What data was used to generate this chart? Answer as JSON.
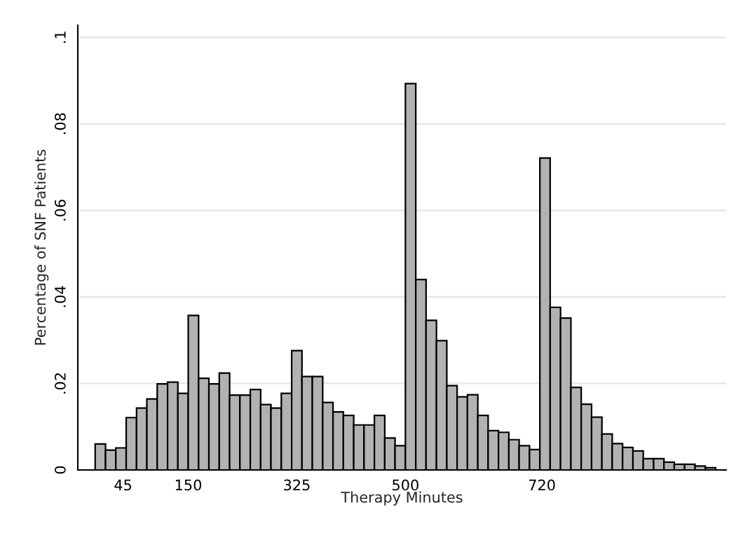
{
  "chart_data": {
    "type": "histogram",
    "xlabel": "Therapy Minutes",
    "ylabel": "Percentage of SNF Patients",
    "bins": [
      0,
      16.7,
      33.3,
      50,
      66.7,
      83.3,
      100,
      116.7,
      133.3,
      150,
      166.7,
      183.3,
      200,
      216.7,
      233.3,
      250,
      266.7,
      283.3,
      300,
      316.7,
      333.3,
      350,
      366.7,
      383.3,
      400,
      416.7,
      433.3,
      450,
      466.7,
      483.3,
      500,
      516.7,
      533.3,
      550,
      566.7,
      583.3,
      600,
      616.7,
      633.3,
      650,
      666.7,
      683.3,
      700,
      716.7,
      733.3,
      750,
      766.7,
      783.3,
      800,
      816.7,
      833.3,
      850,
      866.7,
      883.3,
      900,
      916.7,
      933.3,
      950,
      966.7,
      983.3,
      1000
    ],
    "values": [
      0.006,
      0.0046,
      0.0051,
      0.0121,
      0.0143,
      0.0164,
      0.0199,
      0.0203,
      0.0177,
      0.0357,
      0.0212,
      0.0199,
      0.0224,
      0.0173,
      0.0173,
      0.0186,
      0.0151,
      0.0143,
      0.0177,
      0.0276,
      0.0216,
      0.0216,
      0.0156,
      0.0134,
      0.0126,
      0.0104,
      0.0104,
      0.0126,
      0.0074,
      0.0056,
      0.0893,
      0.044,
      0.0346,
      0.0299,
      0.0195,
      0.0169,
      0.0174,
      0.0126,
      0.0091,
      0.0087,
      0.007,
      0.0056,
      0.0047,
      0.0721,
      0.0376,
      0.0351,
      0.0191,
      0.0152,
      0.0122,
      0.0083,
      0.0061,
      0.0052,
      0.0044,
      0.0026,
      0.0026,
      0.0018,
      0.0013,
      0.0013,
      0.0009,
      0.0005
    ],
    "color": "#b2b2b2",
    "xlim": [
      -28,
      1017
    ],
    "xticks": [
      45,
      150,
      325,
      500,
      720
    ],
    "ylim": [
      0,
      0.1028
    ],
    "yticks": [
      {
        "value": 0,
        "label": "0"
      },
      {
        "value": 0.02,
        "label": ".02"
      },
      {
        "value": 0.04,
        "label": ".04"
      },
      {
        "value": 0.06,
        "label": ".06"
      },
      {
        "value": 0.08,
        "label": ".08"
      },
      {
        "value": 0.1,
        "label": ".1"
      }
    ],
    "grid": "y",
    "legend": false
  }
}
